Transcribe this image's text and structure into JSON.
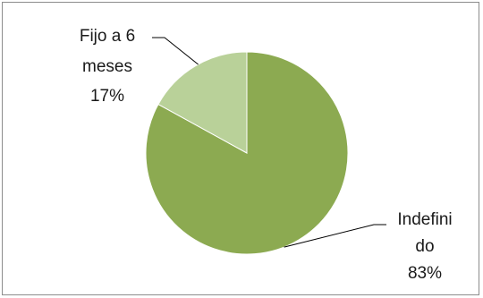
{
  "chart_data": {
    "type": "pie",
    "title": "",
    "categories": [
      "Indefinido",
      "Fijo a 6 meses"
    ],
    "values": [
      83,
      17
    ],
    "unit": "%",
    "labels": [
      {
        "lines": [
          "Indefini",
          "do",
          "83%"
        ]
      },
      {
        "lines": [
          "Fijo a 6",
          "meses",
          "17%"
        ]
      }
    ],
    "colors": [
      "#8caa51",
      "#b9d199"
    ],
    "legend": "none",
    "start_angle": "12 o'clock, clockwise"
  }
}
